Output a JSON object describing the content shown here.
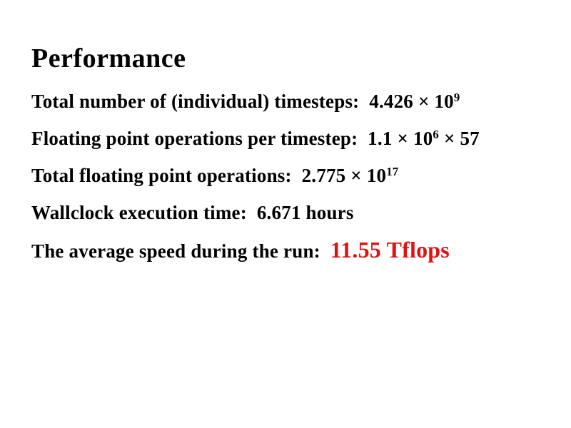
{
  "slide": {
    "title": "Performance",
    "lines": [
      {
        "segments": [
          {
            "text": "Total number of (individual) timesteps:  4.426 × 10"
          },
          {
            "text": "9",
            "superscript": true
          }
        ]
      },
      {
        "segments": [
          {
            "text": "Floating point operations per timestep:  1.1 × 10"
          },
          {
            "text": "6",
            "superscript": true
          },
          {
            "text": " × 57"
          }
        ]
      },
      {
        "segments": [
          {
            "text": "Total floating point operations:  2.775 × 10"
          },
          {
            "text": "17",
            "superscript": true
          }
        ]
      },
      {
        "segments": [
          {
            "text": "Wallclock execution time:  6.671 hours"
          }
        ]
      },
      {
        "segments": [
          {
            "text": "The average speed during the run:  "
          },
          {
            "text": "11.55 Tflops",
            "highlight": true
          }
        ]
      }
    ],
    "colors": {
      "background": "#ffffff",
      "text": "#000000",
      "highlight": "#e01212"
    }
  }
}
